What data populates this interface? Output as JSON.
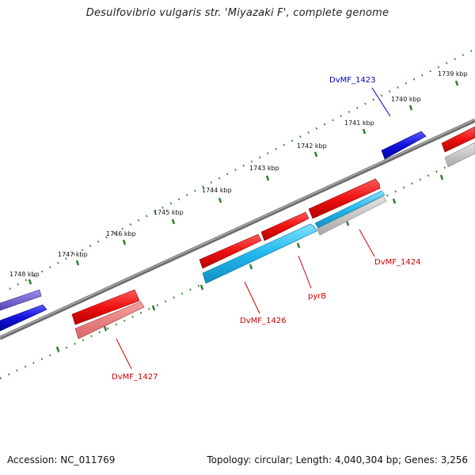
{
  "title": "Desulfovibrio vulgaris str. 'Miyazaki F', complete genome",
  "footer": {
    "accession": "Accession: NC_011769",
    "summary": "Topology: circular; Length: 4,040,304 bp; Genes: 3,256"
  },
  "colors": {
    "backbone": "#777777",
    "tick": "#2e7d2e",
    "forward_gene": "#ee1111",
    "reverse_gene": "#ee1111",
    "cyan_gene": "#22b8ee",
    "blue_gene": "#1111dd",
    "purple_gene": "#6a55c8",
    "grey_gene": "#b8b8b8",
    "label_red": "#cc0000",
    "label_blue": "#0000bb"
  },
  "scale_labels": [
    "1739 kbp",
    "1740 kbp",
    "1741 kbp",
    "1742 kbp",
    "1743 kbp",
    "1744 kbp",
    "1745 kbp",
    "1746 kbp",
    "1747 kbp",
    "1748 kbp"
  ],
  "gene_labels": [
    {
      "id": "DvMF_1423",
      "color": "blue"
    },
    {
      "id": "DvMF_1424",
      "color": "red"
    },
    {
      "id": "pyrB",
      "color": "red"
    },
    {
      "id": "DvMF_1426",
      "color": "red"
    },
    {
      "id": "DvMF_1427",
      "color": "red"
    }
  ]
}
